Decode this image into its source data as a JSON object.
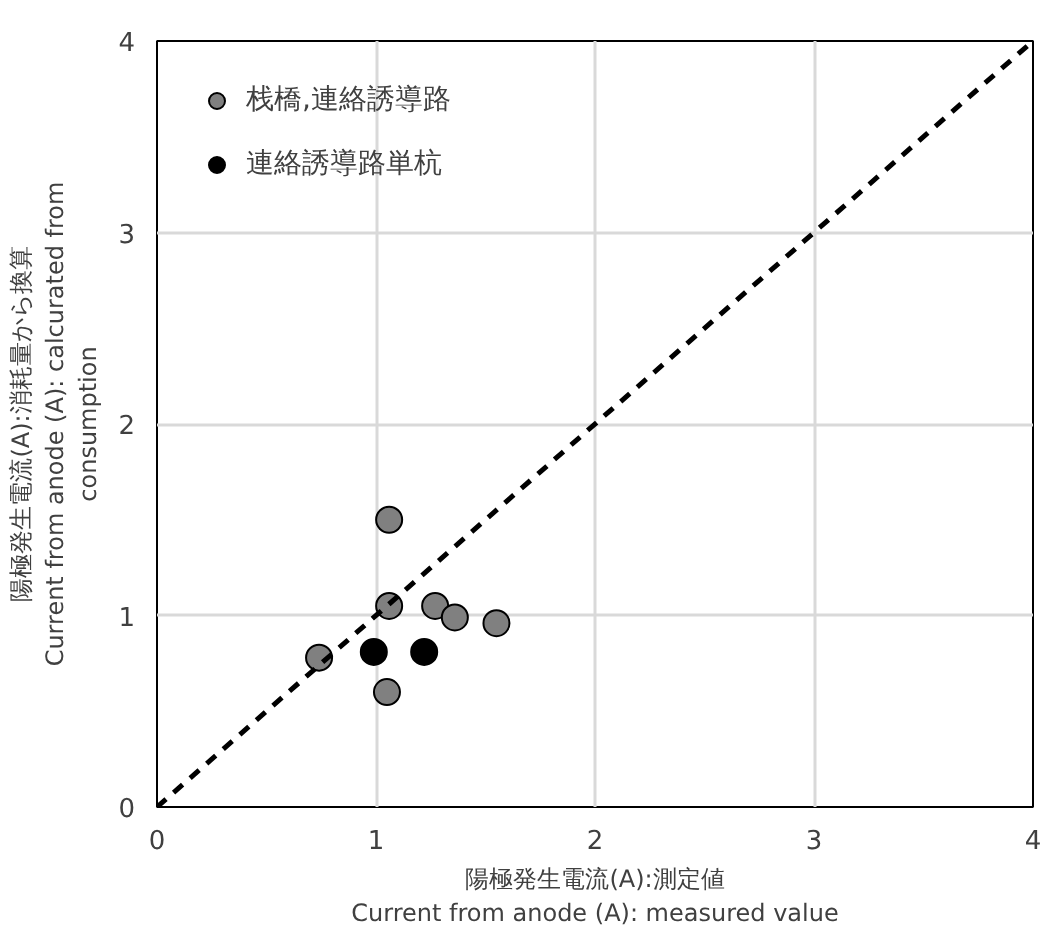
{
  "chart_data": {
    "type": "scatter",
    "xlabel": "陽極発生電流(A):測定値\nCurrent from anode (A): measured value",
    "ylabel": "陽極発生電流(A):消耗量から換算\nCurrent from anode (A): calcurated from\nconsumption",
    "xlim": [
      0,
      4
    ],
    "ylim": [
      0,
      4
    ],
    "xticks": [
      0,
      1,
      2,
      3,
      4
    ],
    "yticks": [
      0,
      1,
      2,
      3,
      4
    ],
    "grid": true,
    "legend": "top left",
    "marker": "circle",
    "series": [
      {
        "name": "栈橋,連絡誘導路",
        "color": "#808080",
        "x": [
          1.06,
          1.06,
          1.27,
          1.36,
          1.55,
          0.74,
          1.05
        ],
        "values": [
          1.5,
          1.05,
          1.05,
          0.99,
          0.96,
          0.78,
          0.6
        ]
      },
      {
        "name": "連絡誘導路単杭",
        "color": "#000000",
        "x": [
          0.99,
          1.22
        ],
        "values": [
          0.81,
          0.81
        ]
      },
      {
        "type": "line",
        "color": "#000000",
        "line_style": "dashed",
        "marker": "none",
        "x": [
          0,
          4
        ],
        "values": [
          0,
          4
        ]
      }
    ]
  }
}
